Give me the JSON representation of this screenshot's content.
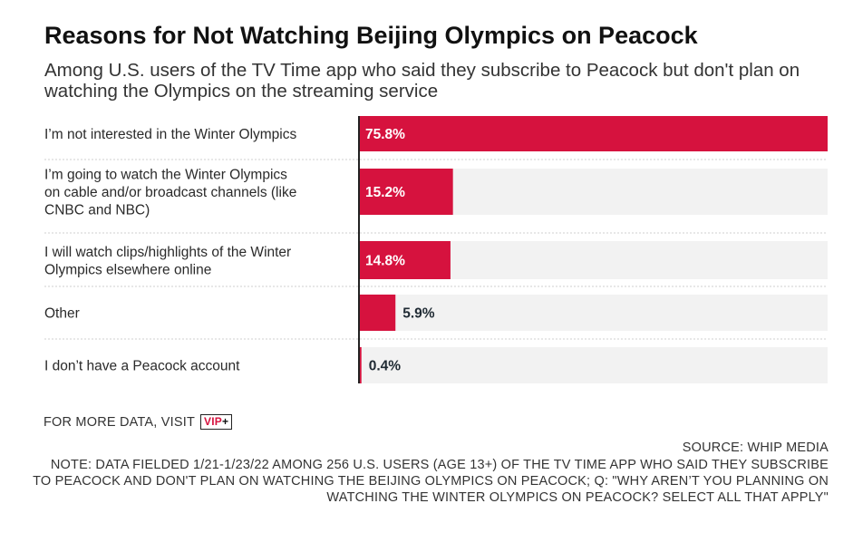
{
  "colors": {
    "bar": "#d6123e",
    "track": "#f2f2f2",
    "axis": "#222222",
    "divider": "#cfcfcf",
    "label_inside": "#ffffff",
    "label_outside": "#1f2a33"
  },
  "footer": {
    "more_data": "FOR MORE DATA, VISIT",
    "logo_text": "VIP",
    "logo_plus": "+",
    "source": "SOURCE: WHIP MEDIA",
    "note": "NOTE: DATA FIELDED 1/21-1/23/22 AMONG 256 U.S. USERS (AGE 13+) OF THE TV TIME APP WHO SAID THEY SUBSCRIBE TO PEACOCK AND DON'T PLAN ON WATCHING THE BEIJING OLYMPICS ON PEACOCK; Q: \"WHY AREN’T YOU PLANNING ON WATCHING THE WINTER OLYMPICS ON PEACOCK? SELECT ALL THAT APPLY\""
  },
  "chart_data": {
    "type": "bar",
    "orientation": "horizontal",
    "title": "Reasons for Not Watching Beijing Olympics on Peacock",
    "subtitle": "Among U.S. users of the TV Time app who said they subscribe to Peacock but don't plan on watching the Olympics on the streaming service",
    "categories": [
      [
        "I’m not interested in the Winter Olympics"
      ],
      [
        "I’m going to watch the Winter Olympics",
        "on cable and/or broadcast channels (like",
        "CNBC and NBC)"
      ],
      [
        "I will watch clips/highlights of the Winter",
        "Olympics elsewhere online"
      ],
      [
        "Other"
      ],
      [
        "I don’t have a Peacock account"
      ]
    ],
    "values": [
      75.8,
      15.2,
      14.8,
      5.9,
      0.4
    ],
    "value_labels": [
      "75.8%",
      "15.2%",
      "14.8%",
      "5.9%",
      "0.4%"
    ],
    "xlim": [
      0,
      75.8
    ],
    "grid": false,
    "legend": "none"
  }
}
